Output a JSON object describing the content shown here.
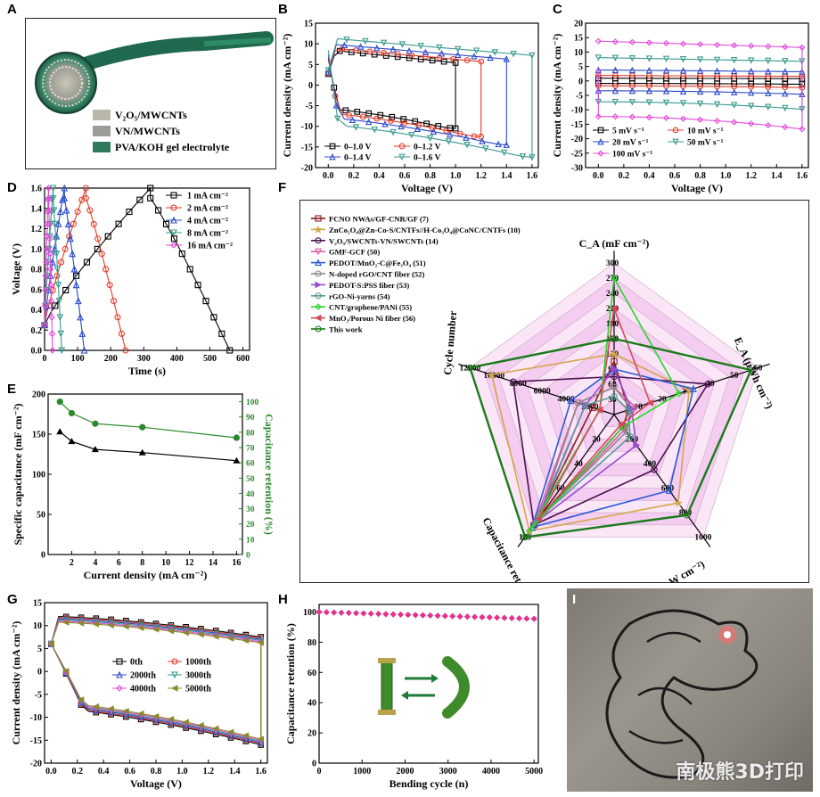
{
  "panels": {
    "A": {
      "letter": "A",
      "legend": [
        "V₂O₅/MWCNTs",
        "VN/MWCNTs",
        "PVA/KOH gel electrolyte"
      ],
      "colors": [
        "#b9b7a8",
        "#9a9c98",
        "#2f7a5c"
      ]
    },
    "B": {
      "letter": "B",
      "chart_data": {
        "type": "line",
        "xlabel": "Voltage (V)",
        "ylabel": "Current density (mA cm⁻²)",
        "xlim": [
          -0.1,
          1.65
        ],
        "ylim": [
          -20,
          15
        ],
        "xticks": [
          0.0,
          0.2,
          0.4,
          0.6,
          0.8,
          1.0,
          1.2,
          1.4,
          1.6
        ],
        "yticks": [
          -20,
          -15,
          -10,
          -5,
          0,
          5,
          10,
          15
        ],
        "legend": [
          "0–1.0 V",
          "0–1.2 V",
          "0–1.4 V",
          "0–1.6 V"
        ],
        "series": [
          {
            "name": "0–1.0 V",
            "color": "#000000",
            "marker": "square",
            "vmax": 1.0,
            "top": 9,
            "bottom": -10.5
          },
          {
            "name": "0–1.2 V",
            "color": "#e23b2a",
            "marker": "circle",
            "vmax": 1.2,
            "top": 9.5,
            "bottom": -12.5
          },
          {
            "name": "0–1.4 V",
            "color": "#2c49c9",
            "marker": "triangle",
            "vmax": 1.4,
            "top": 10.5,
            "bottom": -14.5
          },
          {
            "name": "0–1.6 V",
            "color": "#3a9a8e",
            "marker": "tri-down",
            "vmax": 1.6,
            "top": 12,
            "bottom": -17.5
          }
        ]
      }
    },
    "C": {
      "letter": "C",
      "chart_data": {
        "type": "line",
        "xlabel": "Voltage (V)",
        "ylabel": "Current density (mA cm⁻²)",
        "xlim": [
          -0.1,
          1.65
        ],
        "ylim": [
          -30,
          20
        ],
        "xticks": [
          0.0,
          0.2,
          0.4,
          0.6,
          0.8,
          1.0,
          1.2,
          1.4,
          1.6
        ],
        "yticks": [
          -30,
          -25,
          -20,
          -15,
          -10,
          -5,
          0,
          5,
          10,
          15,
          20
        ],
        "legend": [
          "5 mV s⁻¹",
          "10 mV s⁻¹",
          "20 mV s⁻¹",
          "50 mV s⁻¹",
          "100 mV s⁻¹"
        ],
        "series": [
          {
            "name": "5 mV s⁻¹",
            "color": "#000000",
            "marker": "square",
            "amp": 1.0
          },
          {
            "name": "10 mV s⁻¹",
            "color": "#e23b2a",
            "marker": "circle",
            "amp": 2.0
          },
          {
            "name": "20 mV s⁻¹",
            "color": "#2c49c9",
            "marker": "triangle",
            "amp": 4.0
          },
          {
            "name": "50 mV s⁻¹",
            "color": "#3a9a8e",
            "marker": "tri-down",
            "amp": 8.5
          },
          {
            "name": "100 mV s⁻¹",
            "color": "#e24ad8",
            "marker": "diamond",
            "amp": 14.5
          }
        ]
      }
    },
    "D": {
      "letter": "D",
      "chart_data": {
        "type": "line",
        "xlabel": "Time (s)",
        "ylabel": "Voltage (V)",
        "xlim": [
          0,
          620
        ],
        "ylim": [
          0,
          1.6
        ],
        "xticks": [
          0,
          100,
          200,
          300,
          400,
          500,
          600
        ],
        "yticks": [
          0.0,
          0.2,
          0.4,
          0.6,
          0.8,
          1.0,
          1.2,
          1.4,
          1.6
        ],
        "legend": [
          "1 mA cm⁻²",
          "2 mA cm⁻²",
          "4 mA cm⁻²",
          "8 mA cm⁻²",
          "16 mA cm⁻²"
        ],
        "series": [
          {
            "name": "1 mA cm⁻²",
            "color": "#000000",
            "marker": "square",
            "tpeak": 320,
            "tend": 560
          },
          {
            "name": "2 mA cm⁻²",
            "color": "#e23b2a",
            "marker": "circle",
            "tpeak": 125,
            "tend": 245
          },
          {
            "name": "4 mA cm⁻²",
            "color": "#2c49c9",
            "marker": "triangle",
            "tpeak": 60,
            "tend": 120
          },
          {
            "name": "8 mA cm⁻²",
            "color": "#3a9a8e",
            "marker": "tri-down",
            "tpeak": 26,
            "tend": 52
          },
          {
            "name": "16 mA cm⁻²",
            "color": "#e24ad8",
            "marker": "diamond",
            "tpeak": 12,
            "tend": 24
          }
        ]
      }
    },
    "E": {
      "letter": "E",
      "chart_data": {
        "type": "line",
        "xlabel": "Current density (mA cm⁻²)",
        "ylabel": "Specific capacitance (mF cm⁻²)",
        "y2label": "Capacitance retention (%)",
        "xlim": [
          0,
          16.5
        ],
        "ylim": [
          0,
          200
        ],
        "y2lim": [
          0,
          105
        ],
        "xticks": [
          2,
          4,
          6,
          8,
          10,
          12,
          14,
          16
        ],
        "yticks": [
          0,
          50,
          100,
          150,
          200
        ],
        "y2ticks": [
          0,
          10,
          20,
          30,
          40,
          50,
          60,
          70,
          80,
          90,
          100
        ],
        "x": [
          1,
          2,
          4,
          8,
          16
        ],
        "series": [
          {
            "name": "Specific capacitance",
            "color": "#000000",
            "values": [
              153,
              141,
              131,
              127,
              117
            ]
          },
          {
            "name": "Capacitance retention",
            "color": "#2a8a2a",
            "values": [
              100,
              92.5,
              85.6,
              83.3,
              76.4
            ]
          }
        ]
      }
    },
    "F": {
      "letter": "F",
      "chart_data": {
        "type": "radar",
        "axes": [
          {
            "label": "C_A (mF cm⁻²)",
            "ticks": [
              "30",
              "60",
              "90",
              "120",
              "150",
              "180",
              "210",
              "240",
              "270",
              "300"
            ]
          },
          {
            "label": "E_A (µWh cm⁻²)",
            "ticks": [
              "10",
              "20",
              "30",
              "40",
              "50",
              "60"
            ]
          },
          {
            "label": "P_A (µW cm⁻²)",
            "ticks": [
              "200",
              "400",
              "600",
              "800",
              "1000"
            ]
          },
          {
            "label": "Capacitance retention (%)",
            "ticks": [
              "20",
              "40",
              "60",
              "80",
              "100"
            ]
          },
          {
            "label": "Cycle number",
            "ticks": [
              "2000",
              "4000",
              "6000",
              "8000",
              "10000",
              "12000"
            ]
          }
        ],
        "series": [
          {
            "name": "FCNO NWAs/GF-CNR/GF (7)",
            "color": "#8b1a1a",
            "marker": "square",
            "values": [
              0.35,
              0.1,
              0.1,
              0.9,
              0.15
            ]
          },
          {
            "name": "ZnCo₂O₄@Zn-Co-S/CNTFs//H-Co₃O₄@CoNC/CNTFs (10)",
            "color": "#d4a64a",
            "marker": "star",
            "values": [
              0.4,
              0.52,
              0.72,
              0.95,
              0.85
            ]
          },
          {
            "name": "V₂O₅/SWCNTs-VN/SWCNTs (14)",
            "color": "#4a1050",
            "marker": "circle",
            "values": [
              0.25,
              0.65,
              0.45,
              0.9,
              0.7
            ]
          },
          {
            "name": "GMF-GCF (50)",
            "color": "#e05aa8",
            "marker": "tri-down",
            "values": [
              0.18,
              0.15,
              0.12,
              0.9,
              0.25
            ]
          },
          {
            "name": "PEDOT/MnO₂-C@Fe₃O₄ (51)",
            "color": "#2a5ad4",
            "marker": "triangle",
            "values": [
              0.3,
              0.55,
              0.62,
              0.92,
              0.3
            ]
          },
          {
            "name": "N-doped rGO/CNT fiber (52)",
            "color": "#8a8a8a",
            "marker": "circle",
            "values": [
              0.18,
              0.12,
              0.14,
              0.85,
              0.25
            ]
          },
          {
            "name": "PEDOT-S:PSS fiber (53)",
            "color": "#9a4ad4",
            "marker": "tri-right",
            "values": [
              0.3,
              0.12,
              0.25,
              0.88,
              0.2
            ]
          },
          {
            "name": "rGO-Ni-yarns (54)",
            "color": "#5a9a9a",
            "marker": "circle",
            "values": [
              0.12,
              0.1,
              0.18,
              0.85,
              0.2
            ]
          },
          {
            "name": "CNT/graphene/PANi (55)",
            "color": "#2ad42a",
            "marker": "diamond",
            "values": [
              0.9,
              0.45,
              0.1,
              0.95,
              0.1
            ]
          },
          {
            "name": "MnO₂/Porous Ni fiber (56)",
            "color": "#d44a5a",
            "marker": "tri-left",
            "values": [
              0.7,
              0.25,
              0.08,
              0.85,
              0.1
            ]
          },
          {
            "name": "This work",
            "color": "#1a7a1a",
            "marker": "circle",
            "values": [
              0.5,
              0.95,
              0.82,
              1.0,
              1.0
            ]
          }
        ]
      }
    },
    "G": {
      "letter": "G",
      "chart_data": {
        "type": "line",
        "xlabel": "Voltage (V)",
        "ylabel": "Current density (mA cm⁻²)",
        "xlim": [
          -0.05,
          1.65
        ],
        "ylim": [
          -20,
          15
        ],
        "xticks": [
          0.0,
          0.2,
          0.4,
          0.6,
          0.8,
          1.0,
          1.2,
          1.4,
          1.6
        ],
        "yticks": [
          -20,
          -15,
          -10,
          -5,
          0,
          5,
          10,
          15
        ],
        "legend": [
          "0th",
          "1000th",
          "2000th",
          "3000th",
          "4000th",
          "5000th"
        ],
        "series": [
          {
            "name": "0th",
            "color": "#000000",
            "marker": "square"
          },
          {
            "name": "1000th",
            "color": "#e23b2a",
            "marker": "circle"
          },
          {
            "name": "2000th",
            "color": "#2c49c9",
            "marker": "triangle"
          },
          {
            "name": "3000th",
            "color": "#3a9a8e",
            "marker": "tri-down"
          },
          {
            "name": "4000th",
            "color": "#e24ad8",
            "marker": "diamond"
          },
          {
            "name": "5000th",
            "color": "#8a8a2a",
            "marker": "tri-left"
          }
        ]
      }
    },
    "H": {
      "letter": "H",
      "chart_data": {
        "type": "scatter",
        "xlabel": "Bending cycle (n)",
        "ylabel": "Capacitance retention (%)",
        "xlim": [
          0,
          5100
        ],
        "ylim": [
          0,
          105
        ],
        "xticks": [
          0,
          1000,
          2000,
          3000,
          4000,
          5000
        ],
        "yticks": [
          0,
          20,
          40,
          60,
          80,
          100
        ],
        "series": [
          {
            "name": "retention",
            "color": "#e0348c",
            "start": 100,
            "end": 95.5,
            "points": 30
          }
        ]
      }
    },
    "I": {
      "letter": "I",
      "watermark": "南极熊3D打印"
    }
  }
}
